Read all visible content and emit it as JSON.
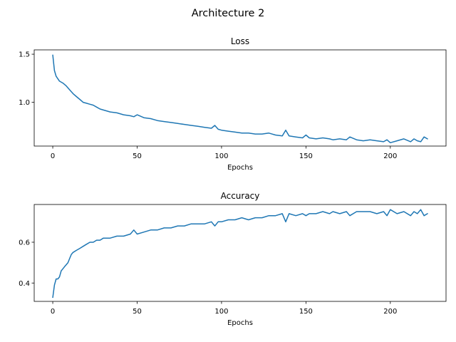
{
  "suptitle": "Architecture 2",
  "chart_data": [
    {
      "type": "line",
      "title": "Loss",
      "xlabel": "Epochs",
      "ylabel": "",
      "xlim": [
        -11,
        233
      ],
      "ylim": [
        0.545,
        1.545
      ],
      "xticks": [
        0,
        50,
        100,
        150,
        200
      ],
      "yticks": [
        1.0,
        1.5
      ],
      "ytick_labels": [
        "1.0",
        "1.5"
      ],
      "grid": false,
      "series": [
        {
          "color": "#1f77b4",
          "x": [
            0,
            1,
            2,
            4,
            6,
            8,
            10,
            12,
            14,
            16,
            18,
            20,
            22,
            24,
            26,
            28,
            30,
            34,
            38,
            42,
            46,
            48,
            50,
            54,
            58,
            62,
            66,
            70,
            74,
            78,
            82,
            86,
            90,
            94,
            96,
            98,
            100,
            104,
            108,
            112,
            116,
            120,
            124,
            128,
            132,
            136,
            138,
            140,
            144,
            148,
            150,
            152,
            156,
            160,
            164,
            166,
            170,
            174,
            176,
            180,
            184,
            188,
            192,
            196,
            198,
            200,
            204,
            208,
            212,
            214,
            216,
            218,
            220,
            222
          ],
          "y": [
            1.49,
            1.33,
            1.27,
            1.22,
            1.2,
            1.17,
            1.13,
            1.09,
            1.06,
            1.03,
            1.0,
            0.99,
            0.98,
            0.97,
            0.95,
            0.93,
            0.92,
            0.9,
            0.89,
            0.87,
            0.86,
            0.85,
            0.87,
            0.84,
            0.83,
            0.81,
            0.8,
            0.79,
            0.78,
            0.77,
            0.76,
            0.75,
            0.74,
            0.73,
            0.76,
            0.72,
            0.71,
            0.7,
            0.69,
            0.68,
            0.68,
            0.67,
            0.67,
            0.68,
            0.66,
            0.65,
            0.71,
            0.65,
            0.64,
            0.63,
            0.66,
            0.63,
            0.62,
            0.63,
            0.62,
            0.61,
            0.62,
            0.61,
            0.64,
            0.61,
            0.6,
            0.61,
            0.6,
            0.59,
            0.61,
            0.58,
            0.6,
            0.62,
            0.59,
            0.62,
            0.6,
            0.59,
            0.64,
            0.62
          ]
        }
      ]
    },
    {
      "type": "line",
      "title": "Accuracy",
      "xlabel": "Epochs",
      "ylabel": "",
      "xlim": [
        -11,
        233
      ],
      "ylim": [
        0.31,
        0.785
      ],
      "xticks": [
        0,
        50,
        100,
        150,
        200
      ],
      "yticks": [
        0.4,
        0.6
      ],
      "ytick_labels": [
        "0.4",
        "0.6"
      ],
      "grid": false,
      "series": [
        {
          "color": "#1f77b4",
          "x": [
            0,
            1,
            2,
            3,
            4,
            5,
            6,
            7,
            8,
            9,
            10,
            11,
            12,
            14,
            16,
            18,
            20,
            22,
            24,
            26,
            28,
            30,
            34,
            38,
            42,
            46,
            48,
            50,
            54,
            58,
            62,
            66,
            70,
            74,
            78,
            82,
            86,
            90,
            94,
            96,
            98,
            100,
            104,
            108,
            112,
            116,
            120,
            124,
            128,
            132,
            136,
            138,
            140,
            144,
            148,
            150,
            152,
            156,
            160,
            164,
            166,
            170,
            174,
            176,
            180,
            184,
            188,
            192,
            196,
            198,
            200,
            204,
            208,
            212,
            214,
            216,
            218,
            220,
            222
          ],
          "y": [
            0.33,
            0.39,
            0.42,
            0.42,
            0.43,
            0.46,
            0.47,
            0.48,
            0.49,
            0.5,
            0.52,
            0.54,
            0.55,
            0.56,
            0.57,
            0.58,
            0.59,
            0.6,
            0.6,
            0.61,
            0.61,
            0.62,
            0.62,
            0.63,
            0.63,
            0.64,
            0.66,
            0.64,
            0.65,
            0.66,
            0.66,
            0.67,
            0.67,
            0.68,
            0.68,
            0.69,
            0.69,
            0.69,
            0.7,
            0.68,
            0.7,
            0.7,
            0.71,
            0.71,
            0.72,
            0.71,
            0.72,
            0.72,
            0.73,
            0.73,
            0.74,
            0.7,
            0.74,
            0.73,
            0.74,
            0.73,
            0.74,
            0.74,
            0.75,
            0.74,
            0.75,
            0.74,
            0.75,
            0.73,
            0.75,
            0.75,
            0.75,
            0.74,
            0.75,
            0.73,
            0.76,
            0.74,
            0.75,
            0.73,
            0.75,
            0.74,
            0.76,
            0.73,
            0.74
          ]
        }
      ]
    }
  ]
}
